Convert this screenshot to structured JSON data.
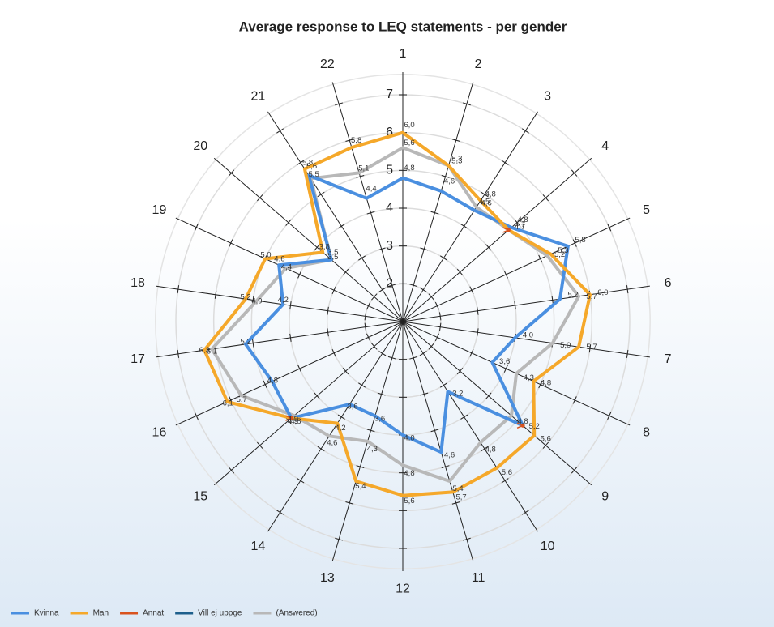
{
  "chart_data": {
    "type": "radar",
    "title": "Average response to LEQ statements - per gender",
    "categories": [
      "1",
      "2",
      "3",
      "4",
      "5",
      "6",
      "7",
      "8",
      "9",
      "10",
      "11",
      "12",
      "13",
      "14",
      "15",
      "16",
      "17",
      "18",
      "19",
      "20",
      "21",
      "22"
    ],
    "ylim": [
      1,
      7
    ],
    "yticks": [
      2,
      3,
      4,
      5,
      6,
      7
    ],
    "series": [
      {
        "name": "Kvinna",
        "color": "#4a8fe0",
        "values": [
          4.8,
          4.6,
          4.5,
          4.8,
          5.8,
          5.2,
          4.0,
          3.6,
          5.2,
          3.2,
          4.6,
          4.0,
          3.6,
          3.6,
          4.9,
          4.8,
          5.2,
          4.2,
          4.6,
          3.5,
          5.6,
          4.4
        ],
        "value_labels": [
          "4,8",
          "4,6",
          "4,5",
          "4,8",
          "5,8",
          "5,2",
          "4,0",
          "3,6",
          "5,2",
          "3,2",
          "4,6",
          "4,0",
          "3,6",
          "3,6",
          "4,9",
          "4,8",
          "5,2",
          "4,2",
          "4,6",
          "3,5",
          "5,6",
          "4,4"
        ]
      },
      {
        "name": "Man",
        "color": "#f5a82a",
        "values": [
          6.0,
          5.3,
          4.8,
          4.7,
          5.3,
          6.0,
          5.7,
          4.8,
          5.6,
          5.6,
          5.7,
          5.6,
          5.4,
          4.2,
          4.9,
          6.1,
          6.3,
          5.2,
          5.0,
          3.8,
          5.8,
          5.8
        ],
        "value_labels": [
          "6,0",
          "5,3",
          "4,8",
          "4,7",
          "5,3",
          "6,0",
          "5,7",
          "4,8",
          "5,6",
          "5,6",
          "5,7",
          "5,6",
          "5,4",
          "4,2",
          "4,9",
          "6,1",
          "6,3",
          "5,2",
          "5,0",
          "3,8",
          "5,8",
          "5,8"
        ]
      },
      {
        "name": "Annat",
        "color": "#d9531e",
        "values": [
          null,
          null,
          null,
          4.7,
          null,
          null,
          null,
          null,
          5.2,
          null,
          null,
          null,
          null,
          null,
          4.9,
          null,
          null,
          null,
          null,
          null,
          null,
          null
        ]
      },
      {
        "name": "Vill ej uppge",
        "color": "#1d5f8c",
        "values": [
          null,
          null,
          null,
          null,
          null,
          null,
          null,
          null,
          null,
          null,
          null,
          null,
          null,
          null,
          null,
          null,
          null,
          null,
          null,
          null,
          null,
          null
        ]
      },
      {
        "name": "(Answered)",
        "color": "#b8b8b8",
        "values": [
          5.6,
          5.3,
          4.6,
          4.7,
          5.2,
          5.7,
          5.0,
          4.3,
          4.8,
          4.8,
          5.4,
          4.8,
          4.3,
          4.6,
          4.8,
          5.7,
          6.1,
          4.9,
          4.4,
          3.5,
          5.5,
          5.1
        ],
        "value_labels": [
          "5,6",
          "5,3",
          "4,6",
          "4,7",
          "5,2",
          "5,7",
          "5,0",
          "4,3",
          "4,8",
          "4,8",
          "5,4",
          "4,8",
          "4,3",
          "4,6",
          "4,8",
          "5,7",
          "6,1",
          "4,9",
          "4,4",
          "3,5",
          "5,5",
          "5,1"
        ]
      }
    ]
  }
}
